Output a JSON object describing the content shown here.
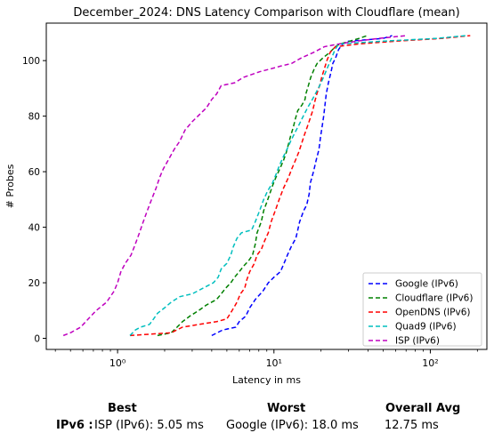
{
  "chart_data": {
    "type": "line",
    "title": "December_2024: DNS Latency Comparison with Cloudflare (mean)",
    "xlabel": "Latency in ms",
    "ylabel": "# Probes",
    "xscale": "log",
    "xlim": [
      0.35,
      230
    ],
    "ylim": [
      -4,
      113.5
    ],
    "xticks": [
      {
        "value": 1,
        "label": "10⁰"
      },
      {
        "value": 10,
        "label": "10¹"
      },
      {
        "value": 100,
        "label": "10²"
      }
    ],
    "yticks": [
      0,
      20,
      40,
      60,
      80,
      100
    ],
    "legend_position": "lower-right",
    "series": [
      {
        "name": "Google (IPv6)",
        "color": "#0000ff",
        "points": [
          [
            4.0,
            1
          ],
          [
            4.7,
            3
          ],
          [
            5.7,
            4
          ],
          [
            6.0,
            6
          ],
          [
            6.6,
            8
          ],
          [
            7.0,
            11
          ],
          [
            7.6,
            14
          ],
          [
            8.5,
            17
          ],
          [
            9.2,
            20
          ],
          [
            10.0,
            22
          ],
          [
            11.0,
            24
          ],
          [
            11.6,
            27
          ],
          [
            12.2,
            30
          ],
          [
            12.9,
            33
          ],
          [
            13.8,
            36
          ],
          [
            14.2,
            39
          ],
          [
            14.6,
            42
          ],
          [
            15.5,
            46
          ],
          [
            16.2,
            48
          ],
          [
            16.8,
            52
          ],
          [
            17.1,
            56
          ],
          [
            17.9,
            60
          ],
          [
            18.6,
            64
          ],
          [
            19.4,
            68
          ],
          [
            19.8,
            72
          ],
          [
            20.3,
            76
          ],
          [
            20.8,
            80
          ],
          [
            21.2,
            84
          ],
          [
            21.6,
            88
          ],
          [
            22.3,
            92
          ],
          [
            23.2,
            96
          ],
          [
            23.8,
            99
          ],
          [
            24.8,
            101
          ],
          [
            25.9,
            104
          ],
          [
            27.5,
            106
          ],
          [
            30.0,
            107
          ],
          [
            50.0,
            108
          ],
          [
            57.0,
            109
          ]
        ]
      },
      {
        "name": "Cloudflare (IPv6)",
        "color": "#008000",
        "points": [
          [
            1.8,
            1
          ],
          [
            2.2,
            2
          ],
          [
            2.4,
            4
          ],
          [
            2.6,
            6
          ],
          [
            2.9,
            8
          ],
          [
            3.3,
            10
          ],
          [
            3.7,
            12
          ],
          [
            4.3,
            14
          ],
          [
            4.6,
            16
          ],
          [
            4.9,
            18
          ],
          [
            5.3,
            20
          ],
          [
            5.6,
            22
          ],
          [
            6.0,
            24
          ],
          [
            6.4,
            26
          ],
          [
            6.9,
            28
          ],
          [
            7.3,
            30
          ],
          [
            7.6,
            34
          ],
          [
            7.8,
            38
          ],
          [
            8.3,
            42
          ],
          [
            8.6,
            46
          ],
          [
            9.0,
            49
          ],
          [
            9.4,
            52
          ],
          [
            9.8,
            55
          ],
          [
            10.3,
            58
          ],
          [
            10.9,
            61
          ],
          [
            11.5,
            64
          ],
          [
            12.0,
            67
          ],
          [
            12.4,
            70
          ],
          [
            12.8,
            73
          ],
          [
            13.3,
            76
          ],
          [
            13.7,
            79
          ],
          [
            14.2,
            82
          ],
          [
            15.1,
            84
          ],
          [
            15.8,
            86
          ],
          [
            16.0,
            88
          ],
          [
            16.6,
            91
          ],
          [
            17.2,
            94
          ],
          [
            18.1,
            97
          ],
          [
            18.9,
            99
          ],
          [
            20.6,
            101
          ],
          [
            22.8,
            103
          ],
          [
            24.7,
            105
          ],
          [
            26.4,
            106
          ],
          [
            30.6,
            107
          ],
          [
            35.0,
            108
          ],
          [
            39.5,
            109
          ]
        ]
      },
      {
        "name": "OpenDNS (IPv6)",
        "color": "#ff0000",
        "points": [
          [
            1.2,
            1
          ],
          [
            2.2,
            2
          ],
          [
            2.6,
            4
          ],
          [
            3.3,
            5
          ],
          [
            4.3,
            6
          ],
          [
            5.0,
            7
          ],
          [
            5.4,
            10
          ],
          [
            5.8,
            13
          ],
          [
            6.1,
            16
          ],
          [
            6.5,
            18
          ],
          [
            6.7,
            21
          ],
          [
            7.0,
            24
          ],
          [
            7.5,
            27
          ],
          [
            7.8,
            30
          ],
          [
            8.3,
            32
          ],
          [
            8.7,
            35
          ],
          [
            9.2,
            38
          ],
          [
            9.6,
            42
          ],
          [
            10.2,
            46
          ],
          [
            10.8,
            50
          ],
          [
            11.5,
            54
          ],
          [
            12.4,
            58
          ],
          [
            13.0,
            61
          ],
          [
            13.7,
            64
          ],
          [
            14.4,
            67
          ],
          [
            15.0,
            70
          ],
          [
            15.6,
            73
          ],
          [
            16.3,
            76
          ],
          [
            17.0,
            79
          ],
          [
            17.7,
            82
          ],
          [
            18.2,
            85
          ],
          [
            18.8,
            88
          ],
          [
            19.6,
            91
          ],
          [
            20.2,
            94
          ],
          [
            21.0,
            97
          ],
          [
            21.8,
            100
          ],
          [
            22.9,
            103
          ],
          [
            24.7,
            105
          ],
          [
            35.0,
            106
          ],
          [
            60.0,
            107
          ],
          [
            120.0,
            108
          ],
          [
            180.0,
            109
          ]
        ]
      },
      {
        "name": "Quad9 (IPv6)",
        "color": "#00bfbf",
        "points": [
          [
            1.2,
            1
          ],
          [
            1.3,
            3
          ],
          [
            1.4,
            4
          ],
          [
            1.6,
            5
          ],
          [
            1.7,
            7
          ],
          [
            1.8,
            9
          ],
          [
            2.0,
            11
          ],
          [
            2.2,
            13
          ],
          [
            2.5,
            15
          ],
          [
            3.0,
            16
          ],
          [
            3.5,
            18
          ],
          [
            4.1,
            20
          ],
          [
            4.4,
            22
          ],
          [
            4.6,
            25
          ],
          [
            5.0,
            27
          ],
          [
            5.3,
            30
          ],
          [
            5.5,
            33
          ],
          [
            5.8,
            36
          ],
          [
            6.2,
            38
          ],
          [
            7.2,
            39
          ],
          [
            7.6,
            42
          ],
          [
            8.1,
            46
          ],
          [
            8.6,
            50
          ],
          [
            9.1,
            53
          ],
          [
            9.8,
            56
          ],
          [
            10.3,
            59
          ],
          [
            10.8,
            62
          ],
          [
            11.4,
            65
          ],
          [
            12.1,
            68
          ],
          [
            12.8,
            71
          ],
          [
            13.6,
            74
          ],
          [
            14.5,
            77
          ],
          [
            15.4,
            80
          ],
          [
            16.4,
            83
          ],
          [
            17.6,
            86
          ],
          [
            18.8,
            89
          ],
          [
            20.0,
            92
          ],
          [
            21.1,
            95
          ],
          [
            22.2,
            98
          ],
          [
            23.4,
            101
          ],
          [
            24.6,
            104
          ],
          [
            26.0,
            106
          ],
          [
            50.0,
            107
          ],
          [
            110.0,
            108
          ],
          [
            170.0,
            109
          ]
        ]
      },
      {
        "name": "ISP (IPv6)",
        "color": "#bf00bf",
        "points": [
          [
            0.45,
            1
          ],
          [
            0.5,
            2
          ],
          [
            0.58,
            4
          ],
          [
            0.65,
            7
          ],
          [
            0.73,
            10
          ],
          [
            0.85,
            13
          ],
          [
            0.95,
            17
          ],
          [
            1.0,
            20
          ],
          [
            1.05,
            24
          ],
          [
            1.12,
            27
          ],
          [
            1.22,
            30
          ],
          [
            1.3,
            34
          ],
          [
            1.38,
            38
          ],
          [
            1.46,
            42
          ],
          [
            1.55,
            46
          ],
          [
            1.65,
            50
          ],
          [
            1.76,
            54
          ],
          [
            1.86,
            58
          ],
          [
            1.96,
            61
          ],
          [
            2.1,
            64
          ],
          [
            2.3,
            68
          ],
          [
            2.5,
            71
          ],
          [
            2.7,
            75
          ],
          [
            3.0,
            78
          ],
          [
            3.4,
            81
          ],
          [
            3.7,
            83
          ],
          [
            4.0,
            86
          ],
          [
            4.3,
            88
          ],
          [
            4.6,
            91
          ],
          [
            5.6,
            92
          ],
          [
            6.4,
            94
          ],
          [
            7.2,
            95
          ],
          [
            8.1,
            96
          ],
          [
            9.5,
            97
          ],
          [
            11.0,
            98
          ],
          [
            13.0,
            99
          ],
          [
            15.0,
            101
          ],
          [
            18.0,
            103
          ],
          [
            21.0,
            105
          ],
          [
            26.0,
            106
          ],
          [
            34.0,
            107
          ],
          [
            47.0,
            108
          ],
          [
            70.0,
            109
          ]
        ]
      }
    ]
  },
  "summary": {
    "best_header": "Best",
    "worst_header": "Worst",
    "avg_header": "Overall Avg",
    "row_label": "IPv6 :",
    "best_value": "ISP (IPv6): 5.05 ms",
    "worst_value": "Google (IPv6): 18.0 ms",
    "avg_value": "12.75 ms"
  }
}
